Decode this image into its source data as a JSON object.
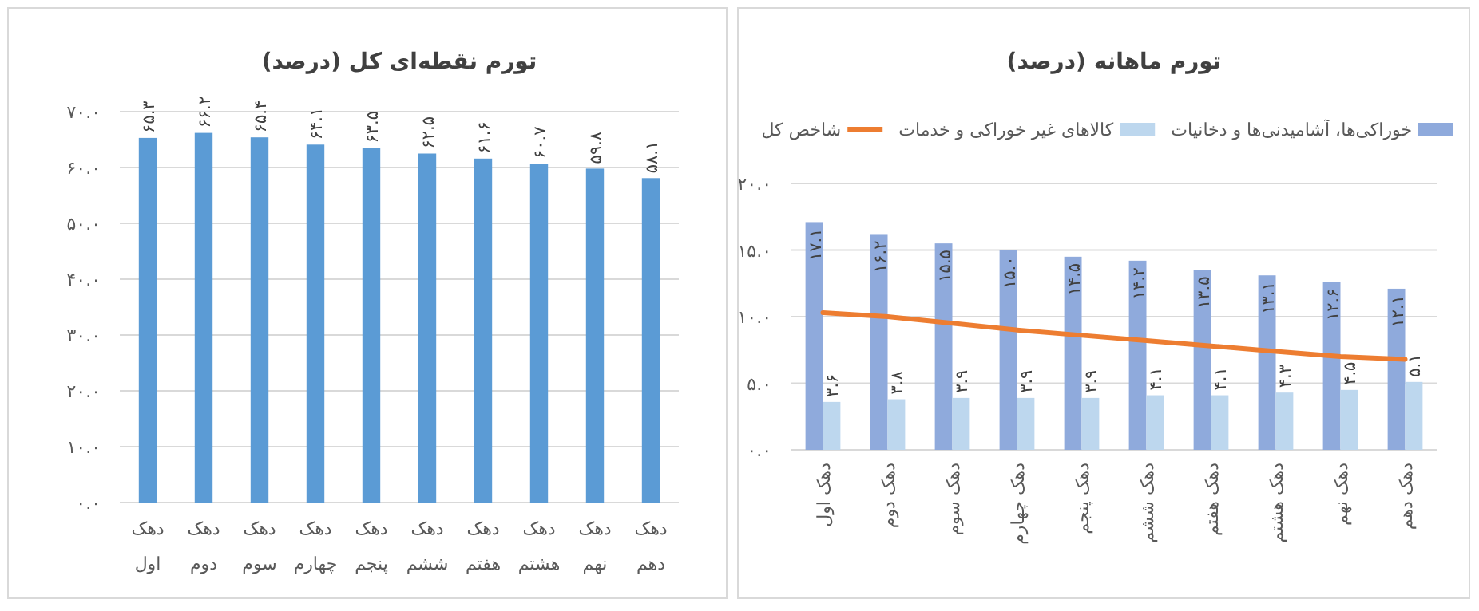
{
  "chart_data": [
    {
      "type": "bar",
      "title": "تورم نقطه‌ای کل (درصد)",
      "categories": [
        "دهک اول",
        "دهک دوم",
        "دهک سوم",
        "دهک چهارم",
        "دهک پنجم",
        "دهک ششم",
        "دهک هفتم",
        "دهک هشتم",
        "دهک نهم",
        "دهک دهم"
      ],
      "values": [
        65.3,
        66.2,
        65.4,
        64.1,
        63.5,
        62.5,
        61.6,
        60.7,
        59.8,
        58.1
      ],
      "color": "#5b9bd5",
      "value_labels": [
        "۶۵.۳",
        "۶۶.۲",
        "۶۵.۴",
        "۶۴.۱",
        "۶۳.۵",
        "۶۲.۵",
        "۶۱.۶",
        "۶۰.۷",
        "۵۹.۸",
        "۵۸.۱"
      ],
      "ylim": [
        0,
        70
      ],
      "yticks": [
        {
          "value": 0,
          "label": "۰.۰"
        },
        {
          "value": 10,
          "label": "۱۰.۰"
        },
        {
          "value": 20,
          "label": "۲۰.۰"
        },
        {
          "value": 30,
          "label": "۳۰.۰"
        },
        {
          "value": 40,
          "label": "۴۰.۰"
        },
        {
          "value": 50,
          "label": "۵۰.۰"
        },
        {
          "value": 60,
          "label": "۶۰.۰"
        },
        {
          "value": 70,
          "label": "۷۰.۰"
        }
      ],
      "grid": "y"
    },
    {
      "type": "bar",
      "title": "تورم ماهانه (درصد)",
      "categories": [
        "دهک اول",
        "دهک دوم",
        "دهک سوم",
        "دهک چهارم",
        "دهک پنجم",
        "دهک ششم",
        "دهک هفتم",
        "دهک هشتم",
        "دهک نهم",
        "دهک دهم"
      ],
      "series": [
        {
          "name": "خوراکی‌ها، آشامیدنی‌ها و دخانیات",
          "color": "#8faadc",
          "values": [
            17.1,
            16.2,
            15.5,
            15.0,
            14.5,
            14.2,
            13.5,
            13.1,
            12.6,
            12.1
          ],
          "value_labels": [
            "۱۷.۱",
            "۱۶.۲",
            "۱۵.۵",
            "۱۵.۰",
            "۱۴.۵",
            "۱۴.۲",
            "۱۳.۵",
            "۱۳.۱",
            "۱۲.۶",
            "۱۲.۱"
          ]
        },
        {
          "name": "کالاهای غیر خوراکی و خدمات",
          "color": "#bdd7ee",
          "values": [
            3.6,
            3.8,
            3.9,
            3.9,
            3.9,
            4.1,
            4.1,
            4.3,
            4.5,
            5.1
          ],
          "value_labels": [
            "۳.۶",
            "۳.۸",
            "۳.۹",
            "۳.۹",
            "۳.۹",
            "۴.۱",
            "۴.۱",
            "۴.۳",
            "۴.۵",
            "۵.۱"
          ]
        },
        {
          "name": "شاخص کل",
          "type": "line",
          "color": "#ed7d31",
          "values": [
            10.3,
            10.0,
            9.5,
            9.0,
            8.6,
            8.2,
            7.8,
            7.4,
            7.0,
            6.8
          ]
        }
      ],
      "ylim": [
        0,
        20
      ],
      "yticks": [
        {
          "value": 0,
          "label": "۰.۰"
        },
        {
          "value": 5,
          "label": "۵.۰"
        },
        {
          "value": 10,
          "label": "۱۰.۰"
        },
        {
          "value": 15,
          "label": "۱۵.۰"
        },
        {
          "value": 20,
          "label": "۲۰.۰"
        }
      ],
      "grid": "y",
      "legend": "top"
    }
  ]
}
